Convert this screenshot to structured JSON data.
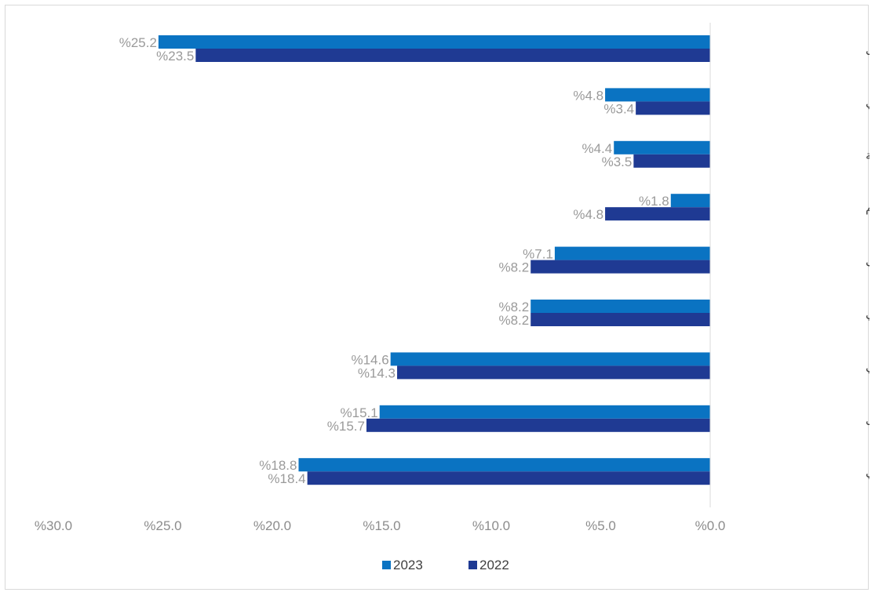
{
  "chart_data": {
    "type": "bar",
    "orientation": "horizontal",
    "title": "",
    "xlabel": "",
    "ylabel": "",
    "categories": [
      "الأخرى",
      "الجهاز الهضمي",
      "القلب والأوعية الدموية",
      "أمراض الأورام",
      "أمراض الكلى",
      "الجهاز العصبي",
      "الجهاز التنفسي",
      "مضادات العدوى",
      "الجهاز العضلي الهيكلي"
    ],
    "series": [
      {
        "name": "2023",
        "color": "#0a73c2",
        "values": [
          25.2,
          4.8,
          4.4,
          1.8,
          7.1,
          8.2,
          14.6,
          15.1,
          18.8
        ],
        "labels": [
          "%25.2",
          "%4.8",
          "%4.4",
          "%1.8",
          "%7.1",
          "%8.2",
          "%14.6",
          "%15.1",
          "%18.8"
        ]
      },
      {
        "name": "2022",
        "color": "#1f3a93",
        "values": [
          23.5,
          3.4,
          3.5,
          4.8,
          8.2,
          8.2,
          14.3,
          15.7,
          18.4
        ],
        "labels": [
          "%23.5",
          "%3.4",
          "%3.5",
          "%4.8",
          "%8.2",
          "%8.2",
          "%14.3",
          "%15.7",
          "%18.4"
        ]
      }
    ],
    "xlim": [
      0,
      30
    ],
    "x_reversed": true,
    "ticks": [
      0,
      5,
      10,
      15,
      20,
      25,
      30
    ],
    "tick_labels": [
      "%0.0",
      "%5.0",
      "%10.0",
      "%15.0",
      "%20.0",
      "%25.0",
      "%30.0"
    ],
    "grid": false,
    "legend": {
      "position": "bottom",
      "entries": [
        "2023",
        "2022"
      ]
    }
  }
}
